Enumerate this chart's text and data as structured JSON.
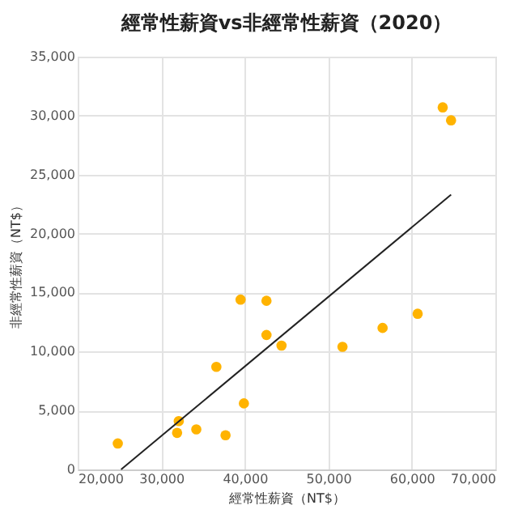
{
  "chart_data": {
    "type": "scatter",
    "title": "經常性薪資vs非經常性薪資（2020）",
    "xlabel": "經常性薪資（NT$）",
    "ylabel": "非經常性薪資（NT$）",
    "xlim": [
      20000,
      70000
    ],
    "xticks": [
      {
        "value": 20000,
        "label": "20,000"
      },
      {
        "value": 30000,
        "label": "30,000"
      },
      {
        "value": 40000,
        "label": "40,000"
      },
      {
        "value": 50000,
        "label": "50,000"
      },
      {
        "value": 60000,
        "label": "60,000"
      },
      {
        "value": 70000,
        "label": "70,000"
      }
    ],
    "ylim": [
      0,
      35000
    ],
    "yticks": [
      0,
      {
        "value": 5000,
        "label": "5,000"
      },
      {
        "value": 10000,
        "label": "10,000"
      },
      {
        "value": 15000,
        "label": "15,000"
      },
      {
        "value": 20000,
        "label": "20,000"
      },
      {
        "value": 25000,
        "label": "25,000"
      },
      {
        "value": 30000,
        "label": "30,000"
      },
      {
        "value": 35000,
        "label": "35,000"
      }
    ],
    "grid": true,
    "series": [
      {
        "type": "scatter",
        "marker": "circle",
        "color": "#ffb300",
        "x": [
          24800,
          31900,
          32100,
          34200,
          37700,
          36600,
          39900,
          39500,
          42600,
          42600,
          44400,
          51700,
          56500,
          60700,
          63700,
          64700
        ],
        "values": [
          2200,
          3100,
          4100,
          3400,
          2900,
          8700,
          5600,
          14400,
          14300,
          11400,
          10500,
          10400,
          12000,
          13200,
          30700,
          29600
        ]
      },
      {
        "type": "line",
        "color": "#222222",
        "x": [
          25200,
          64700
        ],
        "values": [
          0,
          23300
        ]
      }
    ]
  }
}
